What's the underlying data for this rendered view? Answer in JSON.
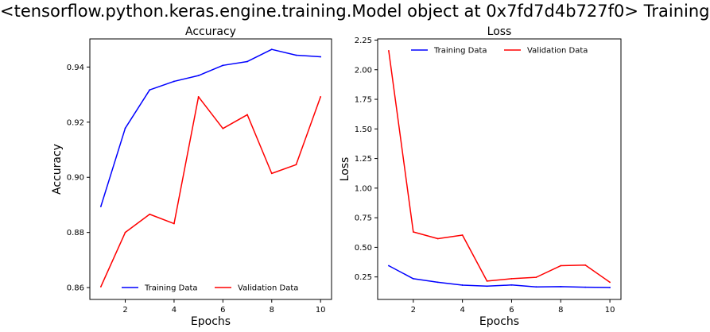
{
  "figure_title": "<tensorflow.python.keras.engine.training.Model object at 0x7fd7d4b727f0> Training",
  "chart_data": [
    {
      "type": "line",
      "title": "Accuracy",
      "xlabel": "Epochs",
      "ylabel": "Accuracy",
      "x": [
        1,
        2,
        3,
        4,
        5,
        6,
        7,
        8,
        9,
        10
      ],
      "xlim": [
        0.55,
        10.45
      ],
      "ylim": [
        0.8557,
        0.9502
      ],
      "xticks": [
        2,
        4,
        6,
        8,
        10
      ],
      "yticks": [
        0.86,
        0.88,
        0.9,
        0.92,
        0.94
      ],
      "tick_decimals": 2,
      "legend_location": "bottom-center",
      "grid": false,
      "series": [
        {
          "name": "Training Data",
          "color": "#0000ff",
          "values": [
            0.8894,
            0.9178,
            0.9317,
            0.9348,
            0.9369,
            0.9406,
            0.942,
            0.9464,
            0.9443,
            0.9437
          ]
        },
        {
          "name": "Validation Data",
          "color": "#ff0000",
          "values": [
            0.8603,
            0.88,
            0.8866,
            0.8832,
            0.9292,
            0.9177,
            0.9227,
            0.9014,
            0.9046,
            0.9292
          ]
        }
      ]
    },
    {
      "type": "line",
      "title": "Loss",
      "xlabel": "Epochs",
      "ylabel": "Loss",
      "x": [
        1,
        2,
        3,
        4,
        5,
        6,
        7,
        8,
        9,
        10
      ],
      "xlim": [
        0.55,
        10.45
      ],
      "ylim": [
        0.06,
        2.26
      ],
      "xticks": [
        2,
        4,
        6,
        8,
        10
      ],
      "yticks": [
        0.25,
        0.5,
        0.75,
        1.0,
        1.25,
        1.5,
        1.75,
        2.0,
        2.25
      ],
      "tick_decimals": 2,
      "legend_location": "top-center",
      "grid": false,
      "series": [
        {
          "name": "Training Data",
          "color": "#0000ff",
          "values": [
            0.345,
            0.235,
            0.205,
            0.181,
            0.172,
            0.182,
            0.166,
            0.168,
            0.163,
            0.161
          ]
        },
        {
          "name": "Validation Data",
          "color": "#ff0000",
          "values": [
            2.16,
            0.63,
            0.573,
            0.603,
            0.215,
            0.235,
            0.247,
            0.345,
            0.35,
            0.205
          ]
        }
      ]
    }
  ]
}
